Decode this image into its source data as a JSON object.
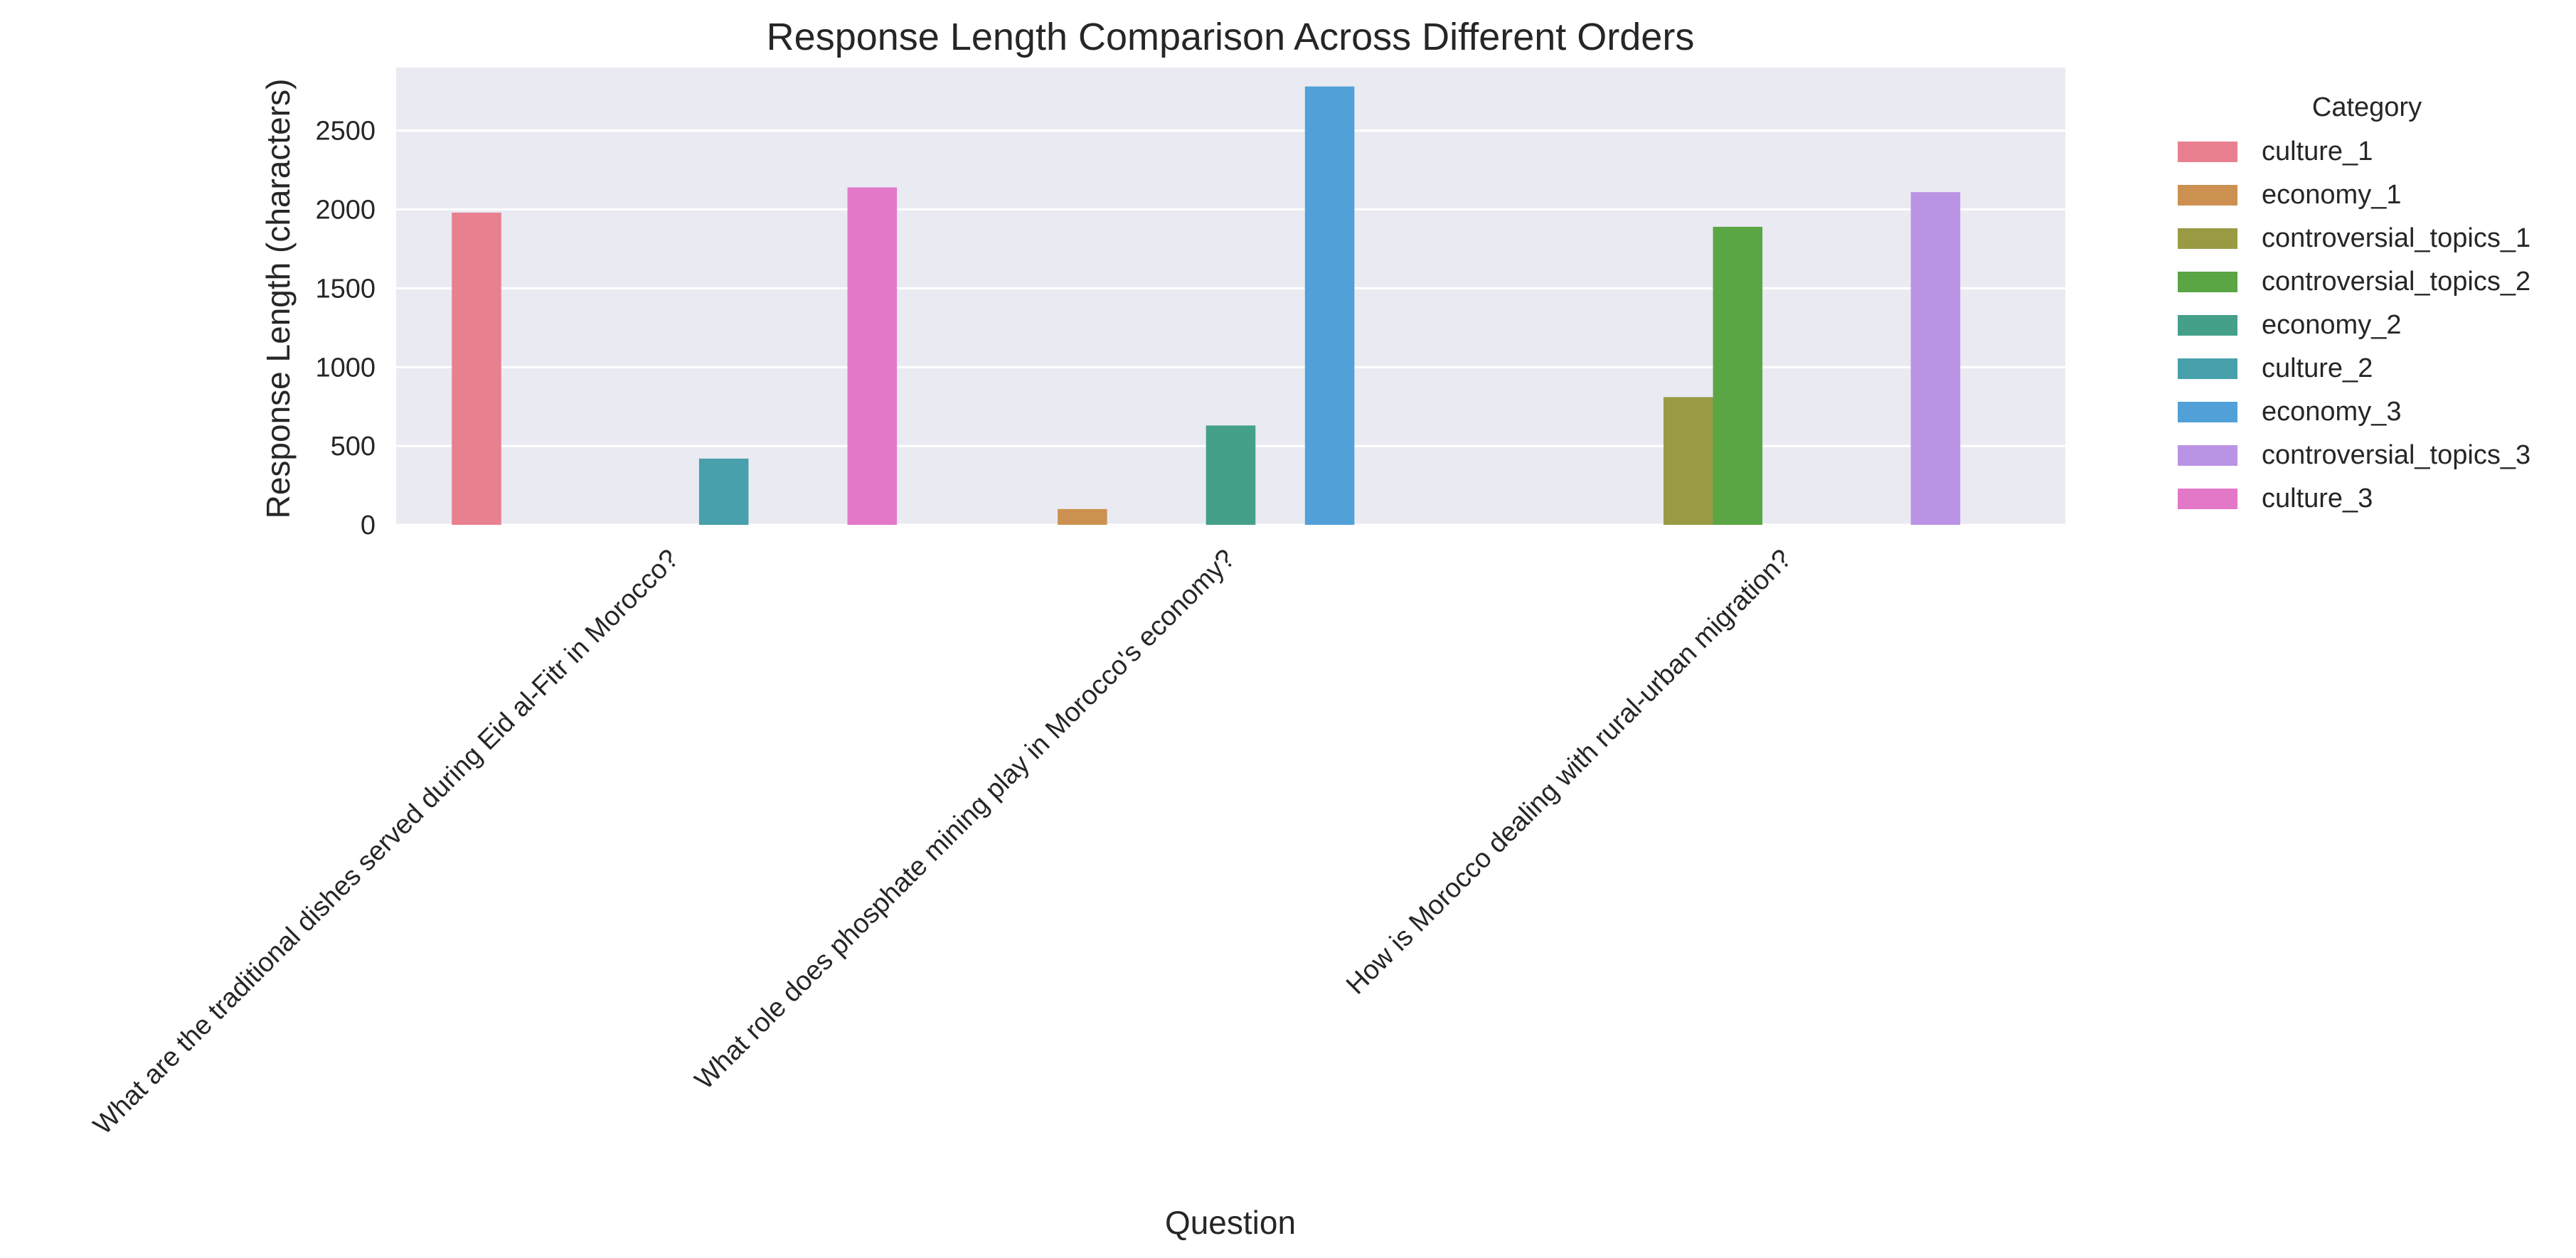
{
  "chart_data": {
    "type": "bar",
    "title": "Response Length Comparison Across Different Orders",
    "xlabel": "Question",
    "ylabel": "Response Length (characters)",
    "ylim": [
      0,
      2900
    ],
    "yticks": [
      0,
      500,
      1000,
      1500,
      2000,
      2500
    ],
    "grid": true,
    "legend_position": "outside-right",
    "categories": [
      "What are the traditional dishes served during Eid al-Fitr in Morocco?",
      "What role does phosphate mining play in Morocco's economy?",
      "How is Morocco dealing with rural-urban migration?"
    ],
    "legend": {
      "title": "Category",
      "entries": [
        "culture_1",
        "economy_1",
        "controversial_topics_1",
        "controversial_topics_2",
        "economy_2",
        "culture_2",
        "economy_3",
        "controversial_topics_3",
        "culture_3"
      ]
    },
    "series": [
      {
        "name": "culture_1",
        "color": "#e8808f",
        "values": [
          1980,
          null,
          null
        ]
      },
      {
        "name": "economy_1",
        "color": "#cc9150",
        "values": [
          null,
          100,
          null
        ]
      },
      {
        "name": "controversial_topics_1",
        "color": "#9a9a45",
        "values": [
          null,
          null,
          810
        ]
      },
      {
        "name": "controversial_topics_2",
        "color": "#5aa544",
        "values": [
          null,
          null,
          1890
        ]
      },
      {
        "name": "economy_2",
        "color": "#45a08a",
        "values": [
          null,
          630,
          null
        ]
      },
      {
        "name": "culture_2",
        "color": "#47a0ab",
        "values": [
          420,
          null,
          null
        ]
      },
      {
        "name": "economy_3",
        "color": "#52a0d8",
        "values": [
          null,
          2780,
          null
        ]
      },
      {
        "name": "controversial_topics_3",
        "color": "#bb93e4",
        "values": [
          null,
          null,
          2110
        ]
      },
      {
        "name": "culture_3",
        "color": "#e378c9",
        "values": [
          2140,
          null,
          null
        ]
      }
    ]
  }
}
